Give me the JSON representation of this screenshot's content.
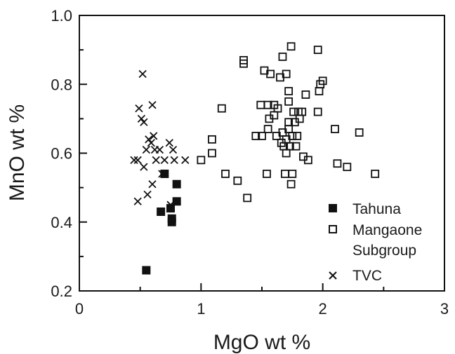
{
  "chart_data": {
    "type": "scatter",
    "title": "",
    "xlabel": "MgO wt %",
    "ylabel": "MnO wt %",
    "xlim": [
      0,
      3
    ],
    "ylim": [
      0.2,
      1.0
    ],
    "x_ticks": [
      "0",
      "1",
      "2",
      "3"
    ],
    "y_ticks": [
      "0.2",
      "0.4",
      "0.6",
      "0.8",
      "1.0"
    ],
    "grid": false,
    "legend_position": "bottom-right",
    "series": [
      {
        "name": "Tahuna",
        "marker": "filled-square",
        "color": "#111111",
        "points": [
          {
            "x": 0.55,
            "y": 0.26
          },
          {
            "x": 0.67,
            "y": 0.43
          },
          {
            "x": 0.7,
            "y": 0.54
          },
          {
            "x": 0.75,
            "y": 0.44
          },
          {
            "x": 0.76,
            "y": 0.41
          },
          {
            "x": 0.76,
            "y": 0.4
          },
          {
            "x": 0.8,
            "y": 0.46
          },
          {
            "x": 0.8,
            "y": 0.51
          }
        ]
      },
      {
        "name": "Mangaone\nSubgroup",
        "marker": "open-square",
        "color": "#111111",
        "points": [
          {
            "x": 1.0,
            "y": 0.58
          },
          {
            "x": 1.09,
            "y": 0.64
          },
          {
            "x": 1.09,
            "y": 0.6
          },
          {
            "x": 1.17,
            "y": 0.73
          },
          {
            "x": 1.2,
            "y": 0.54
          },
          {
            "x": 1.3,
            "y": 0.52
          },
          {
            "x": 1.35,
            "y": 0.87
          },
          {
            "x": 1.35,
            "y": 0.86
          },
          {
            "x": 1.38,
            "y": 0.47
          },
          {
            "x": 1.45,
            "y": 0.65
          },
          {
            "x": 1.49,
            "y": 0.74
          },
          {
            "x": 1.5,
            "y": 0.65
          },
          {
            "x": 1.52,
            "y": 0.84
          },
          {
            "x": 1.54,
            "y": 0.54
          },
          {
            "x": 1.55,
            "y": 0.74
          },
          {
            "x": 1.55,
            "y": 0.67
          },
          {
            "x": 1.56,
            "y": 0.7
          },
          {
            "x": 1.57,
            "y": 0.83
          },
          {
            "x": 1.6,
            "y": 0.74
          },
          {
            "x": 1.6,
            "y": 0.71
          },
          {
            "x": 1.62,
            "y": 0.65
          },
          {
            "x": 1.63,
            "y": 0.73
          },
          {
            "x": 1.65,
            "y": 0.82
          },
          {
            "x": 1.66,
            "y": 0.63
          },
          {
            "x": 1.67,
            "y": 0.88
          },
          {
            "x": 1.67,
            "y": 0.66
          },
          {
            "x": 1.68,
            "y": 0.62
          },
          {
            "x": 1.69,
            "y": 0.54
          },
          {
            "x": 1.7,
            "y": 0.83
          },
          {
            "x": 1.7,
            "y": 0.64
          },
          {
            "x": 1.7,
            "y": 0.6
          },
          {
            "x": 1.72,
            "y": 0.78
          },
          {
            "x": 1.72,
            "y": 0.75
          },
          {
            "x": 1.72,
            "y": 0.69
          },
          {
            "x": 1.72,
            "y": 0.67
          },
          {
            "x": 1.73,
            "y": 0.62
          },
          {
            "x": 1.74,
            "y": 0.91
          },
          {
            "x": 1.74,
            "y": 0.51
          },
          {
            "x": 1.75,
            "y": 0.54
          },
          {
            "x": 1.75,
            "y": 0.65
          },
          {
            "x": 1.76,
            "y": 0.72
          },
          {
            "x": 1.77,
            "y": 0.69
          },
          {
            "x": 1.78,
            "y": 0.62
          },
          {
            "x": 1.79,
            "y": 0.65
          },
          {
            "x": 1.8,
            "y": 0.72
          },
          {
            "x": 1.81,
            "y": 0.7
          },
          {
            "x": 1.83,
            "y": 0.72
          },
          {
            "x": 1.84,
            "y": 0.59
          },
          {
            "x": 1.86,
            "y": 0.77
          },
          {
            "x": 1.88,
            "y": 0.58
          },
          {
            "x": 1.96,
            "y": 0.9
          },
          {
            "x": 1.96,
            "y": 0.72
          },
          {
            "x": 1.97,
            "y": 0.78
          },
          {
            "x": 1.98,
            "y": 0.8
          },
          {
            "x": 2.0,
            "y": 0.81
          },
          {
            "x": 2.1,
            "y": 0.67
          },
          {
            "x": 2.12,
            "y": 0.57
          },
          {
            "x": 2.2,
            "y": 0.56
          },
          {
            "x": 2.3,
            "y": 0.66
          },
          {
            "x": 2.43,
            "y": 0.54
          }
        ]
      },
      {
        "name": "TVC",
        "marker": "x",
        "color": "#111111",
        "points": [
          {
            "x": 0.45,
            "y": 0.58
          },
          {
            "x": 0.48,
            "y": 0.58
          },
          {
            "x": 0.48,
            "y": 0.46
          },
          {
            "x": 0.49,
            "y": 0.73
          },
          {
            "x": 0.51,
            "y": 0.7
          },
          {
            "x": 0.52,
            "y": 0.83
          },
          {
            "x": 0.53,
            "y": 0.69
          },
          {
            "x": 0.53,
            "y": 0.56
          },
          {
            "x": 0.55,
            "y": 0.61
          },
          {
            "x": 0.56,
            "y": 0.48
          },
          {
            "x": 0.57,
            "y": 0.64
          },
          {
            "x": 0.59,
            "y": 0.63
          },
          {
            "x": 0.6,
            "y": 0.51
          },
          {
            "x": 0.6,
            "y": 0.74
          },
          {
            "x": 0.61,
            "y": 0.65
          },
          {
            "x": 0.62,
            "y": 0.61
          },
          {
            "x": 0.63,
            "y": 0.58
          },
          {
            "x": 0.66,
            "y": 0.61
          },
          {
            "x": 0.68,
            "y": 0.54
          },
          {
            "x": 0.7,
            "y": 0.58
          },
          {
            "x": 0.74,
            "y": 0.63
          },
          {
            "x": 0.75,
            "y": 0.45
          },
          {
            "x": 0.77,
            "y": 0.61
          },
          {
            "x": 0.78,
            "y": 0.58
          },
          {
            "x": 0.87,
            "y": 0.58
          }
        ]
      }
    ]
  }
}
